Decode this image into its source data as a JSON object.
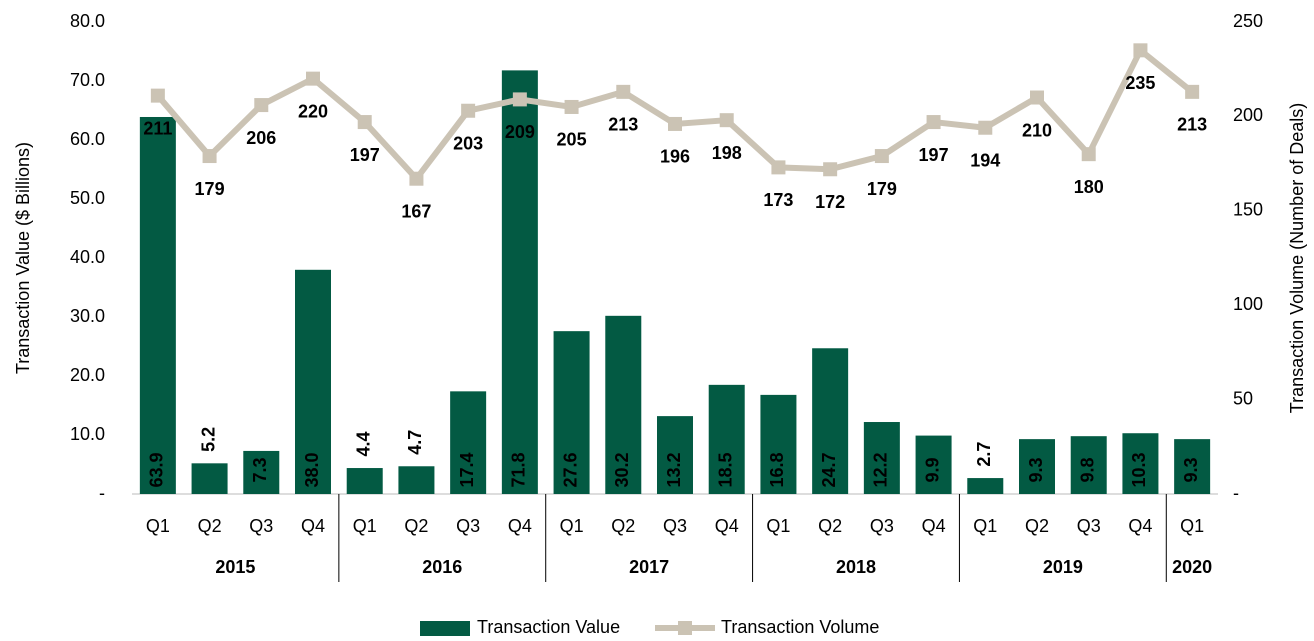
{
  "chart_data": {
    "type": "bar_line",
    "category_groups": [
      {
        "label": "2015",
        "categories": [
          "Q1",
          "Q2",
          "Q3",
          "Q4"
        ]
      },
      {
        "label": "2016",
        "categories": [
          "Q1",
          "Q2",
          "Q3",
          "Q4"
        ]
      },
      {
        "label": "2017",
        "categories": [
          "Q1",
          "Q2",
          "Q3",
          "Q4"
        ]
      },
      {
        "label": "2018",
        "categories": [
          "Q1",
          "Q2",
          "Q3",
          "Q4"
        ]
      },
      {
        "label": "2019",
        "categories": [
          "Q1",
          "Q2",
          "Q3",
          "Q4"
        ]
      },
      {
        "label": "2020",
        "categories": [
          "Q1"
        ]
      }
    ],
    "series": [
      {
        "name": "Transaction Value",
        "type": "bar",
        "color": "#035a43",
        "values": [
          63.9,
          5.2,
          7.3,
          38.0,
          4.4,
          4.7,
          17.4,
          71.8,
          27.6,
          30.2,
          13.2,
          18.5,
          16.8,
          24.7,
          12.2,
          9.9,
          2.7,
          9.3,
          9.8,
          10.3,
          9.3
        ],
        "value_labels": [
          "63.9",
          "5.2",
          "7.3",
          "38.0",
          "4.4",
          "4.7",
          "17.4",
          "71.8",
          "27.6",
          "30.2",
          "13.2",
          "18.5",
          "16.8",
          "24.7",
          "12.2",
          "9.9",
          "2.7",
          "9.3",
          "9.8",
          "10.3",
          "9.3"
        ]
      },
      {
        "name": "Transaction Volume",
        "type": "line",
        "axis": "y2",
        "color": "#cbc3b4",
        "values": [
          211,
          179,
          206,
          220,
          197,
          167,
          203,
          209,
          205,
          213,
          196,
          198,
          173,
          172,
          179,
          197,
          194,
          210,
          180,
          235,
          213
        ]
      }
    ],
    "ylabel": "Transaction Value ($ Billions)",
    "y2label": "Transaction Volume (Number of Deals)",
    "ylim": [
      0,
      80
    ],
    "yticks": [
      {
        "value": 0,
        "label": "-"
      },
      {
        "value": 10,
        "label": "10.0"
      },
      {
        "value": 20,
        "label": "20.0"
      },
      {
        "value": 30,
        "label": "30.0"
      },
      {
        "value": 40,
        "label": "40.0"
      },
      {
        "value": 50,
        "label": "50.0"
      },
      {
        "value": 60,
        "label": "60.0"
      },
      {
        "value": 70,
        "label": "70.0"
      },
      {
        "value": 80,
        "label": "80.0"
      }
    ],
    "y2lim": [
      0,
      250
    ],
    "y2ticks": [
      {
        "value": 0,
        "label": "-"
      },
      50,
      100,
      150,
      200,
      250
    ],
    "legend": "bottom"
  }
}
